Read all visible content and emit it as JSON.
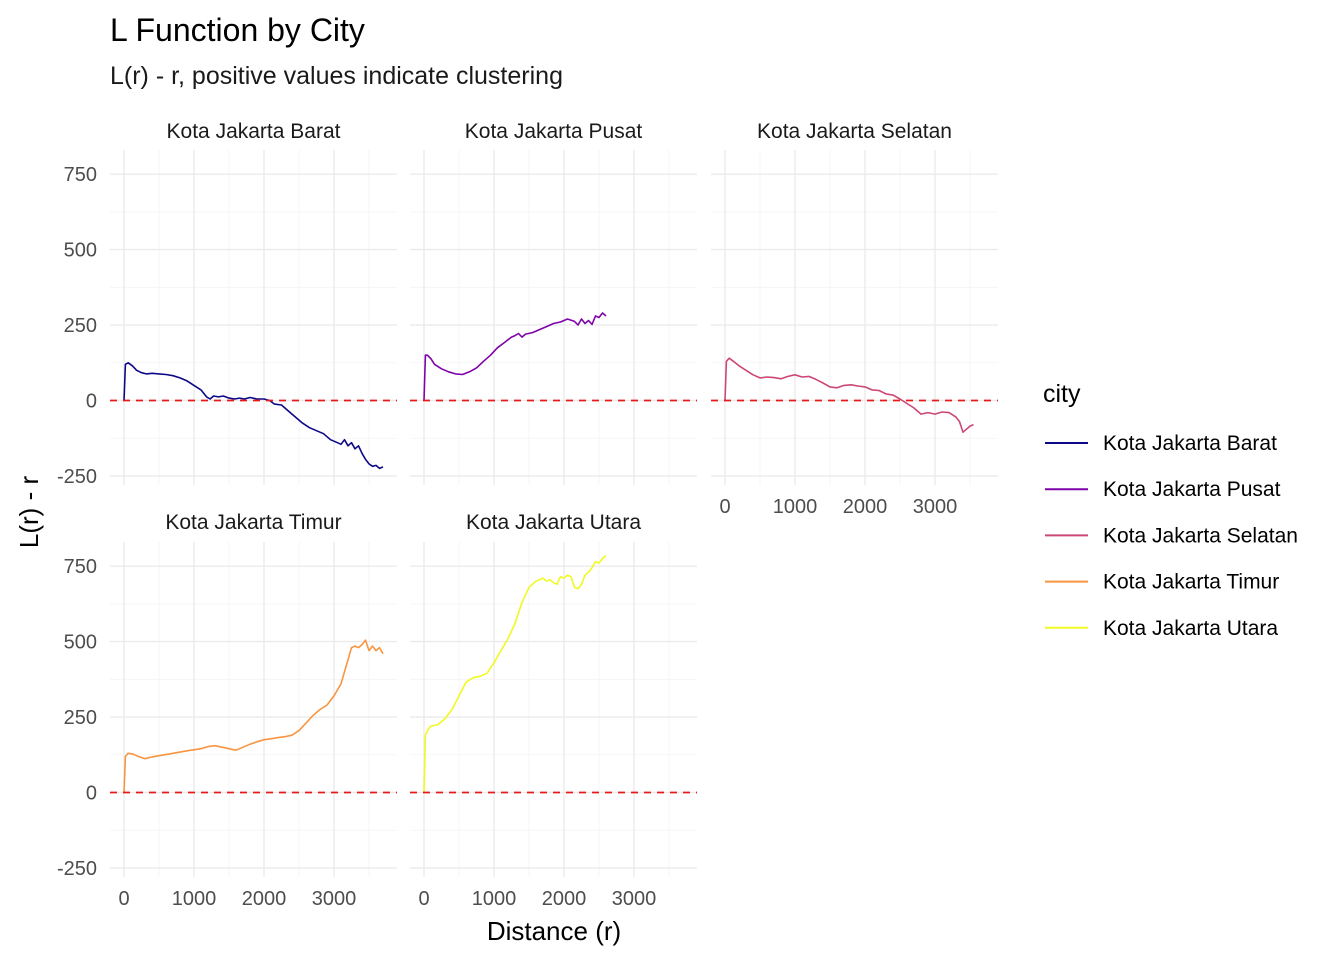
{
  "chart_data": {
    "type": "line",
    "title": "L Function by City",
    "subtitle": "L(r) - r, positive values indicate clustering",
    "xlabel": "Distance (r)",
    "ylabel": "L(r) - r",
    "xlim": [
      -200,
      3900
    ],
    "ylim": [
      -280,
      830
    ],
    "x_ticks": [
      0,
      1000,
      2000,
      3000
    ],
    "y_ticks": [
      -250,
      0,
      250,
      500,
      750
    ],
    "x_tick_labels": [
      "0",
      "1000",
      "2000",
      "3000"
    ],
    "y_tick_labels": [
      "-250",
      "0",
      "250",
      "500",
      "750"
    ],
    "reference_line": {
      "y": 0,
      "style": "dashed",
      "color": "#e41a1c"
    },
    "grid": true,
    "legend": {
      "title": "city",
      "position": "right"
    },
    "series": [
      {
        "name": "Kota Jakarta Barat",
        "color": "#0d0887",
        "x": [
          0,
          20,
          60,
          120,
          180,
          250,
          320,
          400,
          500,
          600,
          700,
          800,
          900,
          1000,
          1100,
          1180,
          1230,
          1280,
          1350,
          1420,
          1500,
          1580,
          1650,
          1720,
          1800,
          1900,
          2000,
          2080,
          2150,
          2250,
          2350,
          2450,
          2550,
          2650,
          2750,
          2850,
          2950,
          3050,
          3100,
          3150,
          3200,
          3250,
          3300,
          3350,
          3400,
          3450,
          3500,
          3550,
          3600,
          3650,
          3700
        ],
        "y": [
          0,
          120,
          125,
          115,
          100,
          92,
          88,
          90,
          88,
          86,
          82,
          75,
          65,
          50,
          35,
          12,
          5,
          15,
          12,
          15,
          8,
          5,
          8,
          5,
          10,
          5,
          5,
          0,
          -12,
          -15,
          -35,
          -55,
          -75,
          -90,
          -100,
          -110,
          -130,
          -140,
          -145,
          -130,
          -150,
          -140,
          -160,
          -150,
          -175,
          -195,
          -210,
          -218,
          -215,
          -225,
          -220
        ]
      },
      {
        "name": "Kota Jakarta Pusat",
        "color": "#7e03a8",
        "x": [
          0,
          20,
          50,
          100,
          150,
          250,
          350,
          450,
          550,
          650,
          750,
          850,
          950,
          1050,
          1150,
          1250,
          1300,
          1350,
          1400,
          1450,
          1550,
          1650,
          1750,
          1850,
          1950,
          2050,
          2150,
          2200,
          2250,
          2300,
          2350,
          2400,
          2450,
          2500,
          2550,
          2600
        ],
        "y": [
          0,
          150,
          150,
          138,
          120,
          105,
          95,
          88,
          86,
          95,
          108,
          130,
          150,
          175,
          192,
          210,
          215,
          222,
          210,
          220,
          225,
          235,
          245,
          255,
          260,
          270,
          262,
          250,
          270,
          255,
          265,
          252,
          280,
          275,
          290,
          280
        ]
      },
      {
        "name": "Kota Jakarta Selatan",
        "color": "#cc4778",
        "x": [
          0,
          20,
          60,
          120,
          200,
          300,
          400,
          500,
          600,
          700,
          800,
          900,
          1000,
          1100,
          1200,
          1300,
          1400,
          1500,
          1600,
          1700,
          1800,
          1900,
          2000,
          2100,
          2200,
          2300,
          2400,
          2500,
          2600,
          2700,
          2800,
          2900,
          3000,
          3100,
          3200,
          3300,
          3350,
          3400,
          3450,
          3500,
          3550
        ],
        "y": [
          0,
          130,
          140,
          130,
          115,
          100,
          85,
          75,
          78,
          76,
          72,
          80,
          85,
          78,
          80,
          70,
          58,
          45,
          42,
          50,
          52,
          48,
          45,
          35,
          33,
          22,
          18,
          5,
          -10,
          -25,
          -45,
          -40,
          -45,
          -38,
          -40,
          -55,
          -70,
          -105,
          -95,
          -85,
          -80
        ]
      },
      {
        "name": "Kota Jakarta Timur",
        "color": "#f89540",
        "x": [
          0,
          20,
          60,
          120,
          200,
          300,
          400,
          500,
          700,
          900,
          1100,
          1200,
          1300,
          1400,
          1500,
          1600,
          1700,
          1800,
          1900,
          2000,
          2100,
          2200,
          2300,
          2400,
          2500,
          2600,
          2700,
          2800,
          2900,
          3000,
          3100,
          3150,
          3200,
          3250,
          3300,
          3350,
          3400,
          3450,
          3500,
          3550,
          3600,
          3650,
          3700
        ],
        "y": [
          0,
          120,
          130,
          128,
          120,
          112,
          118,
          122,
          130,
          138,
          145,
          152,
          155,
          150,
          145,
          140,
          150,
          160,
          168,
          175,
          178,
          182,
          185,
          190,
          205,
          230,
          255,
          275,
          290,
          320,
          360,
          400,
          440,
          480,
          485,
          480,
          490,
          505,
          470,
          485,
          470,
          480,
          460
        ]
      },
      {
        "name": "Kota Jakarta Utara",
        "color": "#f0f921",
        "x": [
          0,
          20,
          60,
          100,
          200,
          300,
          400,
          500,
          600,
          700,
          800,
          900,
          1000,
          1100,
          1200,
          1300,
          1400,
          1500,
          1600,
          1700,
          1750,
          1800,
          1850,
          1900,
          1950,
          2000,
          2050,
          2100,
          2150,
          2200,
          2250,
          2300,
          2350,
          2400,
          2450,
          2500,
          2550,
          2600
        ],
        "y": [
          0,
          190,
          210,
          220,
          225,
          245,
          275,
          320,
          365,
          380,
          385,
          395,
          430,
          470,
          510,
          560,
          630,
          680,
          700,
          710,
          700,
          705,
          695,
          690,
          715,
          710,
          720,
          715,
          680,
          675,
          690,
          720,
          730,
          745,
          765,
          760,
          775,
          785
        ]
      }
    ]
  },
  "panels": [
    {
      "label": "Kota Jakarta Barat",
      "series": 0,
      "show_x_ticks": false,
      "show_y_ticks": true
    },
    {
      "label": "Kota Jakarta Pusat",
      "series": 1,
      "show_x_ticks": false,
      "show_y_ticks": false
    },
    {
      "label": "Kota Jakarta Selatan",
      "series": 2,
      "show_x_ticks": true,
      "show_y_ticks": false
    },
    {
      "label": "Kota Jakarta Timur",
      "series": 3,
      "show_x_ticks": true,
      "show_y_ticks": true
    },
    {
      "label": "Kota Jakarta Utara",
      "series": 4,
      "show_x_ticks": true,
      "show_y_ticks": false
    }
  ]
}
